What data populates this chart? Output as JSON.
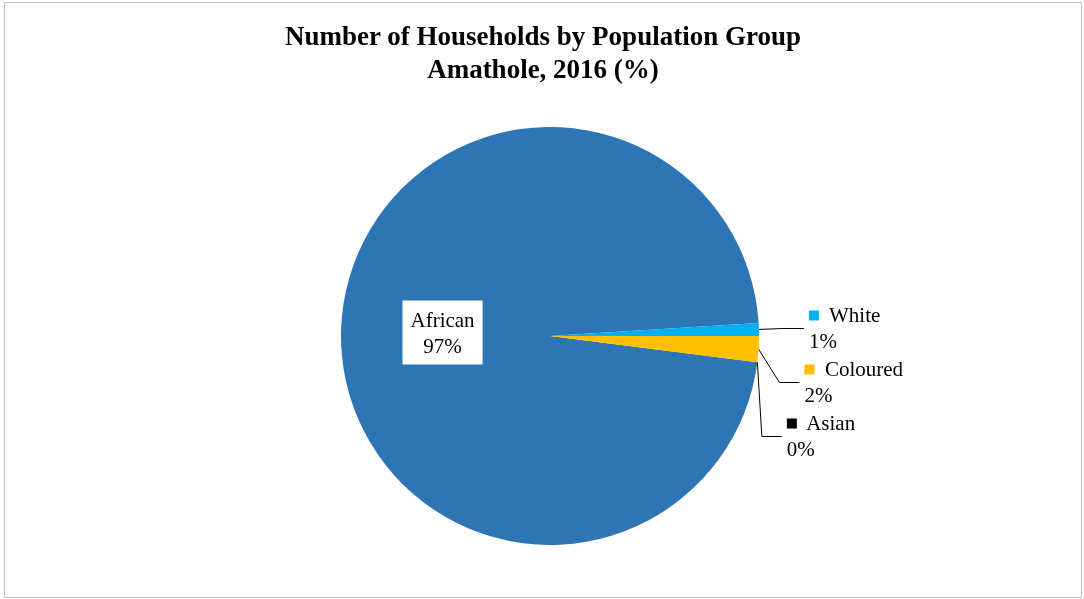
{
  "chart_data": {
    "type": "pie",
    "title": "Number of Households by Population Group",
    "subtitle": "Amathole, 2016 (%)",
    "categories": [
      "African",
      "White",
      "Coloured",
      "Asian"
    ],
    "values": [
      97,
      1,
      2,
      0
    ],
    "colors": [
      "#2e75b6",
      "#00b0f0",
      "#ffc000",
      "#000000"
    ],
    "value_labels": [
      "97%",
      "1%",
      "2%",
      "0%"
    ],
    "legend": "right"
  }
}
